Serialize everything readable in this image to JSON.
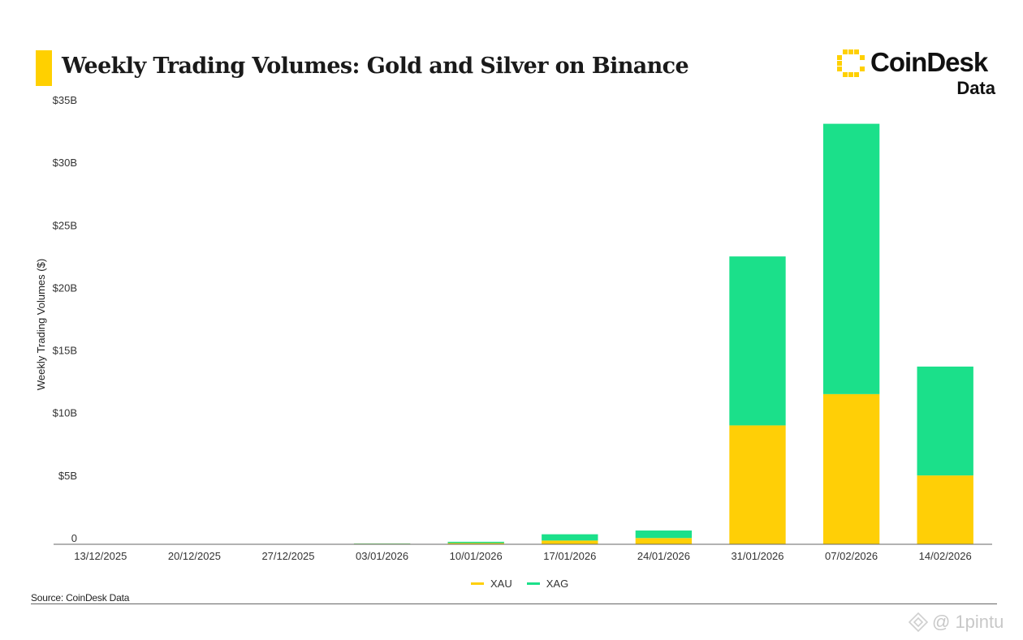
{
  "header": {
    "title": "Weekly Trading Volumes: Gold and Silver on Binance",
    "accent_color": "#FFD000"
  },
  "brand": {
    "name": "CoinDesk",
    "sub": "Data",
    "mark_icon": "coindesk-logo-icon",
    "mark_color": "#FFD000"
  },
  "source": "Source: CoinDesk Data",
  "watermark": {
    "text": "@ 1pintu",
    "icon": "binance-diamond-icon"
  },
  "legend": {
    "placement": "bottom-center",
    "items": [
      {
        "label": "XAU",
        "color": "#FFCF06"
      },
      {
        "label": "XAG",
        "color": "#1BE08A"
      }
    ]
  },
  "chart_data": {
    "type": "bar",
    "stacked": true,
    "title": "Weekly Trading Volumes: Gold and Silver on Binance",
    "xlabel": "",
    "ylabel": "Weekly Trading Volumes ($)",
    "ylim": [
      0,
      35
    ],
    "yunit": "billions USD",
    "yticks": [
      0,
      5,
      10,
      15,
      20,
      25,
      30,
      35
    ],
    "ytick_labels": [
      "0",
      "$5B",
      "$10B",
      "$15B",
      "$20B",
      "$25B",
      "$30B",
      "$35B"
    ],
    "grid": false,
    "categories": [
      "13/12/2025",
      "20/12/2025",
      "27/12/2025",
      "03/01/2026",
      "10/01/2026",
      "17/01/2026",
      "24/01/2026",
      "31/01/2026",
      "07/02/2026",
      "14/02/2026"
    ],
    "series": [
      {
        "name": "XAU",
        "color": "#FFCF06",
        "values": [
          0,
          0,
          0,
          0.05,
          0.1,
          0.3,
          0.5,
          9.5,
          12.0,
          5.5
        ]
      },
      {
        "name": "XAG",
        "color": "#1BE08A",
        "values": [
          0,
          0,
          0,
          0.02,
          0.1,
          0.5,
          0.6,
          13.5,
          21.6,
          8.7
        ]
      }
    ]
  }
}
